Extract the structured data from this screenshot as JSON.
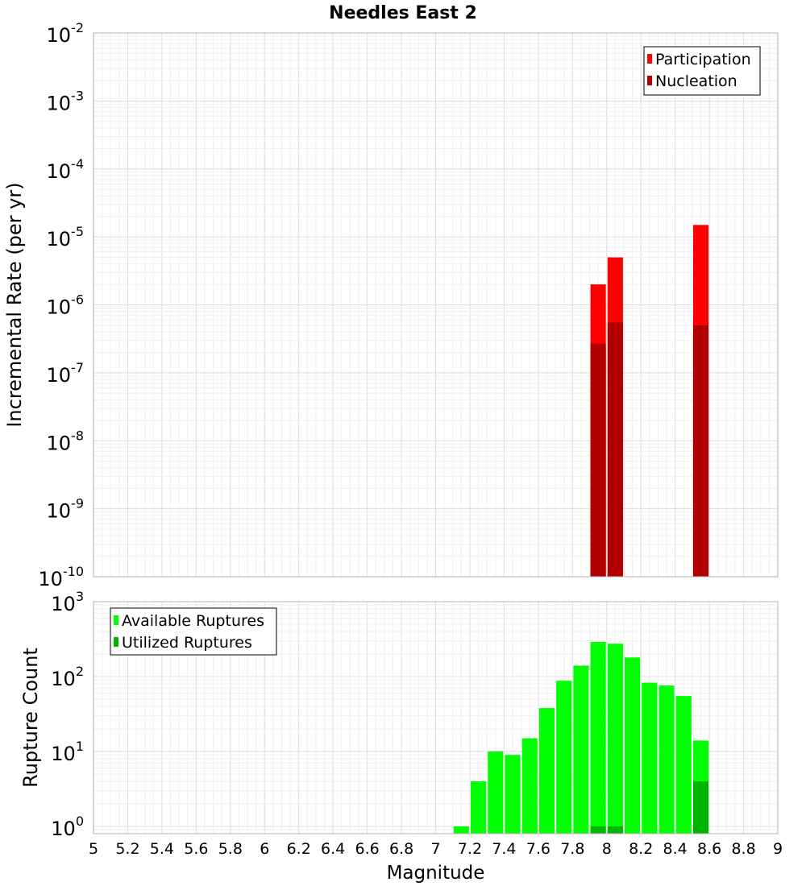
{
  "title": "Needles East 2",
  "chart_data": [
    {
      "type": "bar",
      "title": "Needles East 2",
      "xlabel": "",
      "ylabel": "Incremental Rate (per yr)",
      "yscale": "log",
      "xlim": [
        5,
        9
      ],
      "ylim": [
        1e-10,
        0.01
      ],
      "grid": true,
      "legend_position": "top-right",
      "yticks": [
        {
          "base": "10",
          "exp": "-10",
          "value": 1e-10
        },
        {
          "base": "10",
          "exp": "-9",
          "value": 1e-09
        },
        {
          "base": "10",
          "exp": "-8",
          "value": 1e-08
        },
        {
          "base": "10",
          "exp": "-7",
          "value": 1e-07
        },
        {
          "base": "10",
          "exp": "-6",
          "value": 1e-06
        },
        {
          "base": "10",
          "exp": "-5",
          "value": 1e-05
        },
        {
          "base": "10",
          "exp": "-4",
          "value": 0.0001
        },
        {
          "base": "10",
          "exp": "-3",
          "value": 0.001
        },
        {
          "base": "10",
          "exp": "-2",
          "value": 0.01
        }
      ],
      "series": [
        {
          "name": "Participation",
          "color": "#ff0000",
          "x": [
            7.95,
            8.05,
            8.55
          ],
          "values": [
            2e-06,
            5e-06,
            1.5e-05
          ]
        },
        {
          "name": "Nucleation",
          "color": "#b20000",
          "x": [
            7.95,
            8.05,
            8.55
          ],
          "values": [
            2.7e-07,
            5.5e-07,
            5e-07
          ]
        }
      ]
    },
    {
      "type": "bar",
      "title": "",
      "xlabel": "Magnitude",
      "ylabel": "Rupture Count",
      "yscale": "log",
      "xlim": [
        5,
        9
      ],
      "ylim": [
        0.8,
        1000
      ],
      "grid": true,
      "legend_position": "top-left",
      "yticks": [
        {
          "base": "10",
          "exp": "0",
          "value": 1
        },
        {
          "base": "10",
          "exp": "1",
          "value": 10
        },
        {
          "base": "10",
          "exp": "2",
          "value": 100
        },
        {
          "base": "10",
          "exp": "3",
          "value": 1000
        }
      ],
      "xticks": [
        "5",
        "5.2",
        "5.4",
        "5.6",
        "5.8",
        "6",
        "6.2",
        "6.4",
        "6.6",
        "6.8",
        "7",
        "7.2",
        "7.4",
        "7.6",
        "7.8",
        "8",
        "8.2",
        "8.4",
        "8.6",
        "8.8",
        "9"
      ],
      "series": [
        {
          "name": "Available Ruptures",
          "color": "#00ff00",
          "x": [
            7.15,
            7.25,
            7.35,
            7.45,
            7.55,
            7.65,
            7.75,
            7.85,
            7.95,
            8.05,
            8.15,
            8.25,
            8.35,
            8.45,
            8.55
          ],
          "values": [
            1,
            4,
            10,
            9,
            15,
            38,
            88,
            140,
            290,
            275,
            180,
            83,
            76,
            55,
            14
          ]
        },
        {
          "name": "Utilized Ruptures",
          "color": "#00b400",
          "x": [
            7.95,
            8.05,
            8.55
          ],
          "values": [
            1,
            1,
            4
          ]
        }
      ]
    }
  ]
}
